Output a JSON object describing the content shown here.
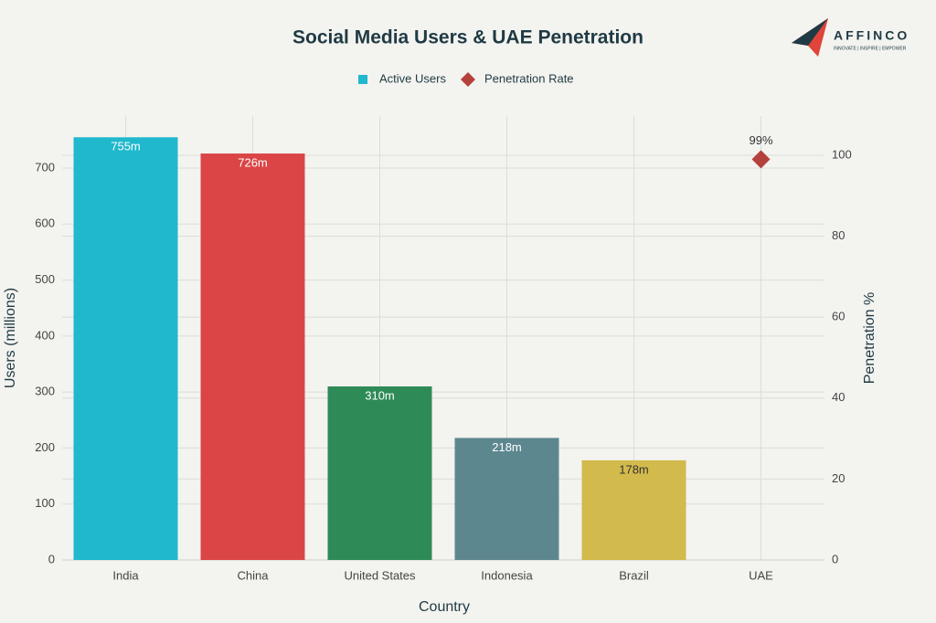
{
  "chart_data": {
    "type": "bar",
    "title": "Social Media Users & UAE Penetration",
    "categories": [
      "India",
      "China",
      "United States",
      "Indonesia",
      "Brazil",
      "UAE"
    ],
    "series": [
      {
        "name": "Active Users",
        "type": "bar",
        "color": "#1fb8cd",
        "colors": [
          "#1fb8cd",
          "#db4545",
          "#2e8b57",
          "#5d878f",
          "#d2ba4c",
          null
        ],
        "values": [
          755,
          726,
          310,
          218,
          178,
          null
        ],
        "value_labels": [
          "755m",
          "726m",
          "310m",
          "218m",
          "178m",
          null
        ]
      },
      {
        "name": "Penetration Rate",
        "type": "scatter",
        "axis": "y2",
        "color": "#b4413c",
        "values": [
          null,
          null,
          null,
          null,
          null,
          99
        ],
        "value_labels": [
          null,
          null,
          null,
          null,
          null,
          "99%"
        ]
      }
    ],
    "x_label": "Country",
    "y_label": "Users (millions)",
    "y2_label": "Penetration %",
    "ylim": [
      0,
      793
    ],
    "yticks": [
      0,
      100,
      200,
      300,
      400,
      500,
      600,
      700
    ],
    "y2lim": [
      0,
      109.7
    ],
    "y2ticks": [
      0,
      20,
      40,
      60,
      80,
      100
    ],
    "grid": true
  },
  "logo": {
    "name": "AFFINCO",
    "tagline": "INNOVATE | INSPIRE | EMPOWER"
  }
}
